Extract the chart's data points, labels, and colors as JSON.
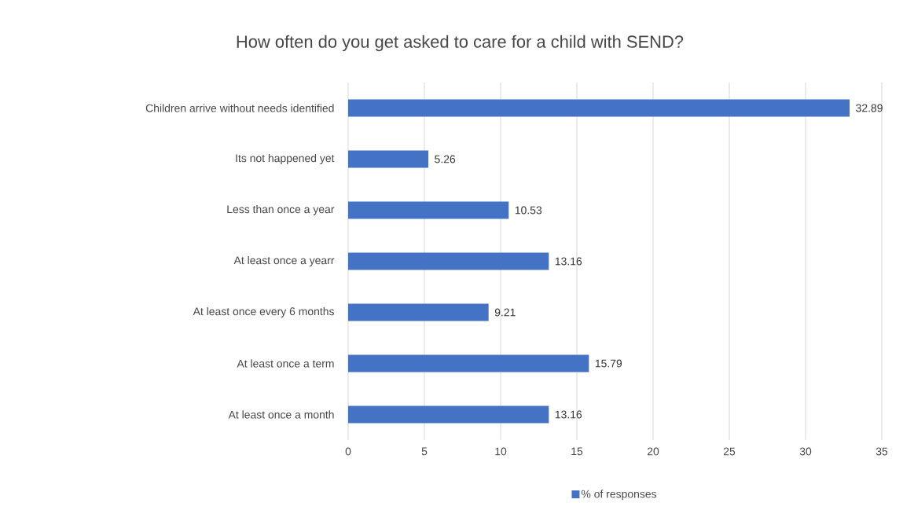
{
  "chart_data": {
    "type": "bar",
    "orientation": "horizontal",
    "title": "How often do you get asked to care for a child with SEND?",
    "categories": [
      "Children arrive without needs identified",
      "Its not happened yet",
      "Less than once a year",
      "At least once a yearr",
      "At least once every 6 months",
      "At least once a term",
      "At least once a month"
    ],
    "series": [
      {
        "name": "% of responses",
        "color": "#4472c4",
        "values": [
          32.89,
          5.26,
          10.53,
          13.16,
          9.21,
          15.79,
          13.16
        ]
      }
    ],
    "xlim": [
      0,
      35
    ],
    "xticks": [
      0,
      5,
      10,
      15,
      20,
      25,
      30,
      35
    ],
    "grid": "x",
    "legend": "bottom",
    "data_labels": true
  }
}
